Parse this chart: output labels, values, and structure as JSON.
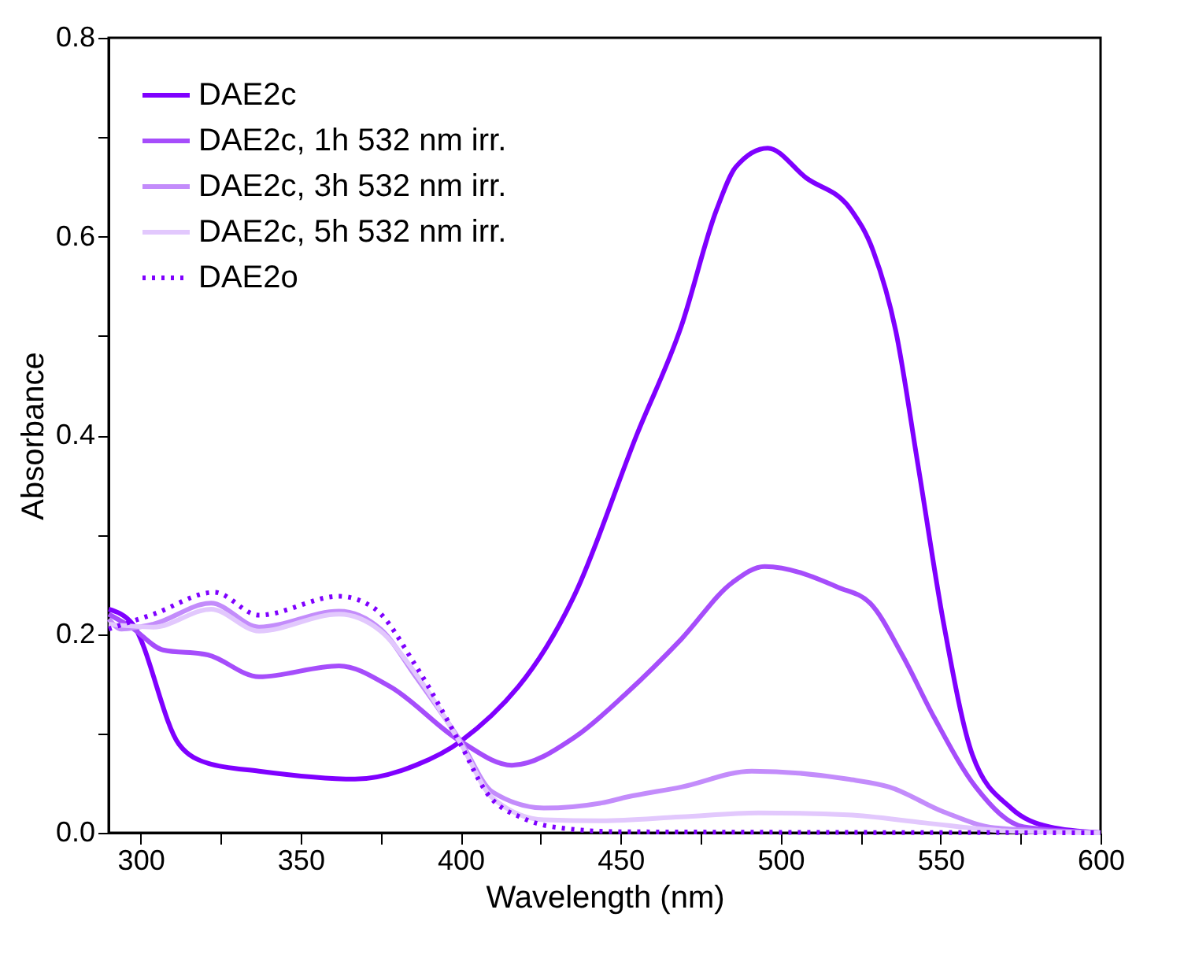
{
  "chart_data": {
    "type": "line",
    "xlabel": "Wavelength (nm)",
    "ylabel": "Absorbance",
    "xlim": [
      290,
      600
    ],
    "ylim": [
      0,
      0.8
    ],
    "xticks": [
      300,
      {
        "value": 325,
        "label": null
      },
      350,
      {
        "value": 375,
        "label": null
      },
      400,
      {
        "value": 425,
        "label": null
      },
      450,
      {
        "value": 475,
        "label": null
      },
      500,
      {
        "value": 525,
        "label": null
      },
      550,
      {
        "value": 575,
        "label": null
      },
      600
    ],
    "yticks": [
      {
        "value": 0,
        "label": "0.0"
      },
      {
        "value": 0.1,
        "label": null
      },
      {
        "value": 0.2,
        "label": "0.2"
      },
      {
        "value": 0.3,
        "label": null
      },
      {
        "value": 0.4,
        "label": "0.4"
      },
      {
        "value": 0.5,
        "label": null
      },
      {
        "value": 0.6,
        "label": "0.6"
      },
      {
        "value": 0.7,
        "label": null
      },
      {
        "value": 0.8,
        "label": "0.8"
      }
    ],
    "grid": false,
    "legend": "top left",
    "marker": "none",
    "series": [
      {
        "name": "DAE2c",
        "color": "#7f00ff",
        "line_style": "solid",
        "x": [
          290,
          297.5,
          312,
          321,
          337,
          367,
          386,
          400,
          436,
          455,
          469,
          480,
          486,
          496,
          508,
          522,
          529,
          536,
          543,
          551,
          560,
          572,
          584,
          600
        ],
        "values": [
          0.225,
          0.21,
          0.089,
          0.07,
          0.062,
          0.054,
          0.068,
          0.092,
          0.242,
          0.4,
          0.51,
          0.627,
          0.67,
          0.689,
          0.659,
          0.627,
          0.585,
          0.505,
          0.369,
          0.21,
          0.078,
          0.025,
          0.006,
          0
        ]
      },
      {
        "name": "DAE2c, 1h 532 nm irr.",
        "color": "#a64dfb",
        "line_style": "solid",
        "x": [
          290,
          297,
          307,
          321,
          337,
          362,
          378,
          400,
          416,
          436,
          452,
          469,
          485,
          495,
          518,
          528,
          538,
          548,
          561,
          576,
          600
        ],
        "values": [
          0.22,
          0.207,
          0.184,
          0.179,
          0.157,
          0.168,
          0.147,
          0.092,
          0.068,
          0.097,
          0.141,
          0.195,
          0.252,
          0.268,
          0.247,
          0.231,
          0.179,
          0.116,
          0.046,
          0.006,
          0
        ]
      },
      {
        "name": "DAE2c, 3h 532 nm irr.",
        "color": "#c38cfb",
        "line_style": "solid",
        "x": [
          290,
          294,
          304,
          322,
          337,
          362,
          375,
          386,
          400,
          410,
          426,
          444,
          452,
          469,
          491,
          521,
          534,
          551,
          567,
          600
        ],
        "values": [
          0.215,
          0.205,
          0.21,
          0.231,
          0.207,
          0.223,
          0.205,
          0.157,
          0.092,
          0.041,
          0.025,
          0.03,
          0.036,
          0.046,
          0.062,
          0.054,
          0.046,
          0.021,
          0.005,
          0
        ]
      },
      {
        "name": "DAE2c, 5h 532 nm irr.",
        "color": "#e2c8fd",
        "line_style": "solid",
        "x": [
          290,
          304,
          322,
          337,
          362,
          375,
          386,
          400,
          410,
          426,
          444,
          469,
          493,
          521,
          545,
          570,
          600
        ],
        "values": [
          0.21,
          0.207,
          0.225,
          0.203,
          0.22,
          0.203,
          0.16,
          0.09,
          0.035,
          0.013,
          0.012,
          0.016,
          0.02,
          0.018,
          0.01,
          0.002,
          0
        ]
      },
      {
        "name": "DAE2o",
        "color": "#7f00ff",
        "line_style": "dotted",
        "x": [
          290,
          304,
          323,
          337,
          362,
          373,
          386,
          400,
          408,
          420,
          431,
          450,
          600
        ],
        "values": [
          0.205,
          0.22,
          0.242,
          0.219,
          0.238,
          0.226,
          0.168,
          0.089,
          0.041,
          0.014,
          0.005,
          0.001,
          0
        ]
      }
    ]
  }
}
